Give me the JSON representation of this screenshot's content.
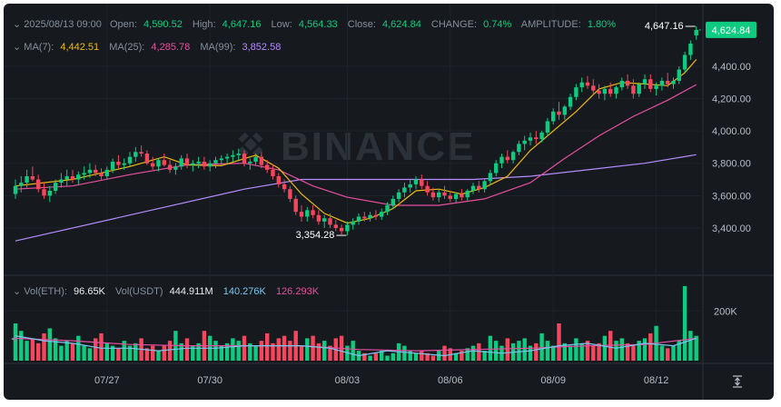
{
  "info": {
    "date": "2025/08/13 09:00",
    "open_label": "Open:",
    "open": "4,590.52",
    "high_label": "High:",
    "high": "4,647.16",
    "low_label": "Low:",
    "low": "4,564.33",
    "close_label": "Close:",
    "close": "4,624.84",
    "change_label": "CHANGE:",
    "change": "0.74%",
    "amplitude_label": "AMPLITUDE:",
    "amplitude": "1.80%"
  },
  "ma": {
    "ma7_label": "MA(7):",
    "ma7": "4,442.51",
    "ma25_label": "MA(25):",
    "ma25": "4,285.78",
    "ma99_label": "MA(99):",
    "ma99": "3,852.58"
  },
  "vol": {
    "eth_label": "Vol(ETH):",
    "eth": "96.65K",
    "usdt_label": "Vol(USDT)",
    "usdt": "444.911M",
    "ma1": "140.276K",
    "ma2": "126.293K"
  },
  "watermark": "BINANCE",
  "current_price": "4,624.84",
  "high_marker": "4,647.16",
  "low_marker": "3,354.28",
  "colors": {
    "up": "#0ecb81",
    "down": "#f6465d",
    "ma7": "#f0b90b",
    "ma25": "#e64fa0",
    "ma99": "#b48cff",
    "vol_ma1": "#7ac6f0",
    "vol_ma2": "#e64fa0"
  },
  "chart_data": {
    "type": "candlestick",
    "interval_note": "",
    "price_axis": {
      "ticks": [
        "4,400.00",
        "4,200.00",
        "4,000.00",
        "3,800.00",
        "3,600.00",
        "3,400.00"
      ],
      "tick_values": [
        4400,
        4200,
        4000,
        3800,
        3600,
        3400
      ],
      "ylim": [
        3130,
        4720
      ]
    },
    "volume_axis": {
      "ticks": [
        "200K"
      ],
      "tick_values": [
        200000
      ],
      "ylim": [
        0,
        340000
      ]
    },
    "x_ticks": [
      {
        "label": "07/27",
        "index": 16
      },
      {
        "label": "07/30",
        "index": 34
      },
      {
        "label": "08/03",
        "index": 58
      },
      {
        "label": "08/06",
        "index": 76
      },
      {
        "label": "08/09",
        "index": 94
      },
      {
        "label": "08/12",
        "index": 112
      }
    ],
    "high_marker": {
      "value": 4647.16,
      "index": 119
    },
    "low_marker": {
      "value": 3354.28,
      "index": 58
    },
    "ma_lines": {
      "ma7": [
        [
          0,
          3660
        ],
        [
          10,
          3700
        ],
        [
          20,
          3780
        ],
        [
          26,
          3840
        ],
        [
          30,
          3790
        ],
        [
          36,
          3785
        ],
        [
          42,
          3850
        ],
        [
          46,
          3770
        ],
        [
          50,
          3610
        ],
        [
          54,
          3490
        ],
        [
          58,
          3430
        ],
        [
          62,
          3460
        ],
        [
          66,
          3520
        ],
        [
          70,
          3630
        ],
        [
          74,
          3640
        ],
        [
          78,
          3610
        ],
        [
          82,
          3650
        ],
        [
          86,
          3720
        ],
        [
          90,
          3880
        ],
        [
          94,
          4000
        ],
        [
          98,
          4120
        ],
        [
          102,
          4260
        ],
        [
          106,
          4300
        ],
        [
          110,
          4290
        ],
        [
          114,
          4280
        ],
        [
          117,
          4360
        ],
        [
          119,
          4442
        ]
      ],
      "ma25": [
        [
          0,
          3640
        ],
        [
          10,
          3660
        ],
        [
          20,
          3730
        ],
        [
          30,
          3790
        ],
        [
          40,
          3800
        ],
        [
          46,
          3760
        ],
        [
          52,
          3660
        ],
        [
          58,
          3590
        ],
        [
          66,
          3540
        ],
        [
          74,
          3540
        ],
        [
          82,
          3580
        ],
        [
          90,
          3680
        ],
        [
          96,
          3830
        ],
        [
          102,
          3970
        ],
        [
          108,
          4090
        ],
        [
          114,
          4190
        ],
        [
          119,
          4286
        ]
      ],
      "ma99": [
        [
          0,
          3320
        ],
        [
          20,
          3480
        ],
        [
          40,
          3640
        ],
        [
          50,
          3700
        ],
        [
          60,
          3700
        ],
        [
          70,
          3700
        ],
        [
          80,
          3700
        ],
        [
          90,
          3720
        ],
        [
          100,
          3760
        ],
        [
          110,
          3800
        ],
        [
          119,
          3853
        ]
      ],
      "vol_ma1": [
        [
          0,
          100000
        ],
        [
          5,
          80000
        ],
        [
          10,
          70000
        ],
        [
          15,
          50000
        ],
        [
          20,
          50000
        ],
        [
          25,
          40000
        ],
        [
          30,
          50000
        ],
        [
          35,
          50000
        ],
        [
          40,
          60000
        ],
        [
          45,
          60000
        ],
        [
          50,
          60000
        ],
        [
          55,
          50000
        ],
        [
          60,
          20000
        ],
        [
          65,
          40000
        ],
        [
          70,
          30000
        ],
        [
          75,
          20000
        ],
        [
          80,
          40000
        ],
        [
          85,
          30000
        ],
        [
          90,
          40000
        ],
        [
          95,
          60000
        ],
        [
          100,
          70000
        ],
        [
          105,
          50000
        ],
        [
          110,
          70000
        ],
        [
          115,
          60000
        ],
        [
          119,
          90000
        ]
      ],
      "vol_ma2": [
        [
          0,
          90000
        ],
        [
          10,
          80000
        ],
        [
          20,
          65000
        ],
        [
          30,
          60000
        ],
        [
          40,
          60000
        ],
        [
          50,
          60000
        ],
        [
          60,
          45000
        ],
        [
          70,
          40000
        ],
        [
          80,
          45000
        ],
        [
          90,
          50000
        ],
        [
          100,
          60000
        ],
        [
          110,
          65000
        ],
        [
          119,
          90000
        ]
      ]
    },
    "candles": [
      [
        3610,
        3700,
        3580,
        3660
      ],
      [
        3660,
        3720,
        3620,
        3680
      ],
      [
        3680,
        3760,
        3650,
        3720
      ],
      [
        3720,
        3780,
        3690,
        3700
      ],
      [
        3700,
        3730,
        3620,
        3640
      ],
      [
        3640,
        3680,
        3580,
        3600
      ],
      [
        3600,
        3660,
        3560,
        3630
      ],
      [
        3630,
        3700,
        3610,
        3680
      ],
      [
        3680,
        3740,
        3650,
        3700
      ],
      [
        3700,
        3760,
        3660,
        3720
      ],
      [
        3720,
        3760,
        3680,
        3700
      ],
      [
        3700,
        3750,
        3670,
        3730
      ],
      [
        3730,
        3780,
        3700,
        3740
      ],
      [
        3740,
        3800,
        3710,
        3760
      ],
      [
        3760,
        3790,
        3720,
        3740
      ],
      [
        3740,
        3770,
        3700,
        3720
      ],
      [
        3720,
        3780,
        3700,
        3760
      ],
      [
        3760,
        3830,
        3740,
        3810
      ],
      [
        3810,
        3850,
        3770,
        3790
      ],
      [
        3790,
        3830,
        3760,
        3800
      ],
      [
        3800,
        3870,
        3780,
        3840
      ],
      [
        3840,
        3900,
        3810,
        3870
      ],
      [
        3870,
        3910,
        3840,
        3860
      ],
      [
        3860,
        3880,
        3790,
        3800
      ],
      [
        3800,
        3840,
        3760,
        3780
      ],
      [
        3780,
        3830,
        3750,
        3820
      ],
      [
        3820,
        3860,
        3780,
        3790
      ],
      [
        3790,
        3820,
        3740,
        3760
      ],
      [
        3760,
        3800,
        3730,
        3780
      ],
      [
        3780,
        3850,
        3760,
        3830
      ],
      [
        3830,
        3860,
        3770,
        3790
      ],
      [
        3790,
        3820,
        3750,
        3800
      ],
      [
        3800,
        3840,
        3770,
        3810
      ],
      [
        3810,
        3840,
        3760,
        3780
      ],
      [
        3780,
        3820,
        3750,
        3800
      ],
      [
        3800,
        3840,
        3770,
        3820
      ],
      [
        3820,
        3850,
        3790,
        3830
      ],
      [
        3830,
        3860,
        3800,
        3840
      ],
      [
        3840,
        3880,
        3810,
        3850
      ],
      [
        3850,
        3890,
        3820,
        3860
      ],
      [
        3860,
        3880,
        3780,
        3800
      ],
      [
        3800,
        3830,
        3760,
        3810
      ],
      [
        3810,
        3860,
        3790,
        3840
      ],
      [
        3840,
        3870,
        3770,
        3790
      ],
      [
        3790,
        3820,
        3740,
        3760
      ],
      [
        3760,
        3790,
        3700,
        3720
      ],
      [
        3720,
        3740,
        3650,
        3670
      ],
      [
        3670,
        3700,
        3620,
        3640
      ],
      [
        3640,
        3660,
        3560,
        3580
      ],
      [
        3580,
        3600,
        3480,
        3500
      ],
      [
        3500,
        3540,
        3440,
        3470
      ],
      [
        3470,
        3530,
        3440,
        3510
      ],
      [
        3510,
        3540,
        3460,
        3480
      ],
      [
        3480,
        3510,
        3420,
        3440
      ],
      [
        3440,
        3480,
        3400,
        3460
      ],
      [
        3460,
        3490,
        3400,
        3420
      ],
      [
        3420,
        3450,
        3380,
        3400
      ],
      [
        3400,
        3420,
        3360,
        3380
      ],
      [
        3380,
        3440,
        3354,
        3420
      ],
      [
        3420,
        3460,
        3390,
        3440
      ],
      [
        3440,
        3490,
        3420,
        3470
      ],
      [
        3470,
        3500,
        3440,
        3460
      ],
      [
        3460,
        3500,
        3440,
        3480
      ],
      [
        3480,
        3510,
        3450,
        3470
      ],
      [
        3470,
        3520,
        3450,
        3500
      ],
      [
        3500,
        3560,
        3480,
        3540
      ],
      [
        3540,
        3600,
        3520,
        3580
      ],
      [
        3580,
        3640,
        3560,
        3620
      ],
      [
        3620,
        3680,
        3590,
        3650
      ],
      [
        3650,
        3700,
        3620,
        3670
      ],
      [
        3670,
        3720,
        3640,
        3700
      ],
      [
        3700,
        3730,
        3640,
        3660
      ],
      [
        3660,
        3690,
        3600,
        3620
      ],
      [
        3620,
        3650,
        3570,
        3590
      ],
      [
        3590,
        3640,
        3560,
        3620
      ],
      [
        3620,
        3660,
        3580,
        3600
      ],
      [
        3600,
        3630,
        3560,
        3580
      ],
      [
        3580,
        3620,
        3560,
        3610
      ],
      [
        3610,
        3640,
        3570,
        3590
      ],
      [
        3590,
        3640,
        3570,
        3630
      ],
      [
        3630,
        3680,
        3610,
        3660
      ],
      [
        3660,
        3690,
        3620,
        3640
      ],
      [
        3640,
        3700,
        3620,
        3690
      ],
      [
        3690,
        3760,
        3670,
        3740
      ],
      [
        3740,
        3820,
        3720,
        3800
      ],
      [
        3800,
        3860,
        3770,
        3840
      ],
      [
        3840,
        3880,
        3800,
        3820
      ],
      [
        3820,
        3880,
        3800,
        3870
      ],
      [
        3870,
        3940,
        3850,
        3920
      ],
      [
        3920,
        3970,
        3880,
        3940
      ],
      [
        3940,
        3990,
        3910,
        3960
      ],
      [
        3960,
        4000,
        3920,
        3950
      ],
      [
        3950,
        4000,
        3930,
        3990
      ],
      [
        3990,
        4080,
        3970,
        4060
      ],
      [
        4060,
        4140,
        4040,
        4120
      ],
      [
        4120,
        4180,
        4070,
        4100
      ],
      [
        4100,
        4160,
        4070,
        4150
      ],
      [
        4150,
        4230,
        4130,
        4210
      ],
      [
        4210,
        4290,
        4190,
        4270
      ],
      [
        4270,
        4330,
        4240,
        4300
      ],
      [
        4300,
        4340,
        4260,
        4280
      ],
      [
        4280,
        4320,
        4220,
        4250
      ],
      [
        4250,
        4290,
        4200,
        4230
      ],
      [
        4230,
        4280,
        4190,
        4260
      ],
      [
        4260,
        4300,
        4210,
        4230
      ],
      [
        4230,
        4280,
        4200,
        4270
      ],
      [
        4270,
        4330,
        4250,
        4310
      ],
      [
        4310,
        4350,
        4260,
        4280
      ],
      [
        4280,
        4320,
        4200,
        4230
      ],
      [
        4230,
        4300,
        4210,
        4290
      ],
      [
        4290,
        4350,
        4260,
        4320
      ],
      [
        4320,
        4350,
        4240,
        4260
      ],
      [
        4260,
        4300,
        4220,
        4280
      ],
      [
        4280,
        4330,
        4250,
        4310
      ],
      [
        4310,
        4360,
        4270,
        4290
      ],
      [
        4290,
        4330,
        4260,
        4310
      ],
      [
        4310,
        4400,
        4290,
        4380
      ],
      [
        4380,
        4490,
        4360,
        4470
      ],
      [
        4470,
        4560,
        4440,
        4540
      ],
      [
        4591,
        4647,
        4564,
        4625
      ]
    ],
    "volumes": [
      150000,
      120000,
      80000,
      90000,
      70000,
      110000,
      130000,
      90000,
      60000,
      80000,
      70000,
      100000,
      60000,
      50000,
      90000,
      110000,
      70000,
      60000,
      50000,
      80000,
      60000,
      70000,
      90000,
      50000,
      60000,
      40000,
      60000,
      80000,
      120000,
      70000,
      90000,
      60000,
      70000,
      120000,
      100000,
      80000,
      60000,
      70000,
      90000,
      80000,
      100000,
      70000,
      60000,
      80000,
      110000,
      70000,
      90000,
      100000,
      80000,
      120000,
      60000,
      90000,
      100000,
      70000,
      80000,
      60000,
      90000,
      100000,
      60000,
      80000,
      40000,
      30000,
      20000,
      30000,
      40000,
      20000,
      30000,
      70000,
      60000,
      40000,
      30000,
      40000,
      30000,
      20000,
      40000,
      60000,
      50000,
      30000,
      40000,
      50000,
      60000,
      70000,
      40000,
      100000,
      80000,
      60000,
      90000,
      70000,
      80000,
      90000,
      60000,
      70000,
      110000,
      80000,
      60000,
      150000,
      70000,
      60000,
      90000,
      70000,
      80000,
      60000,
      70000,
      100000,
      120000,
      80000,
      90000,
      70000,
      60000,
      80000,
      90000,
      110000,
      140000,
      60000,
      50000,
      60000,
      80000,
      300000,
      120000,
      100000
    ]
  }
}
